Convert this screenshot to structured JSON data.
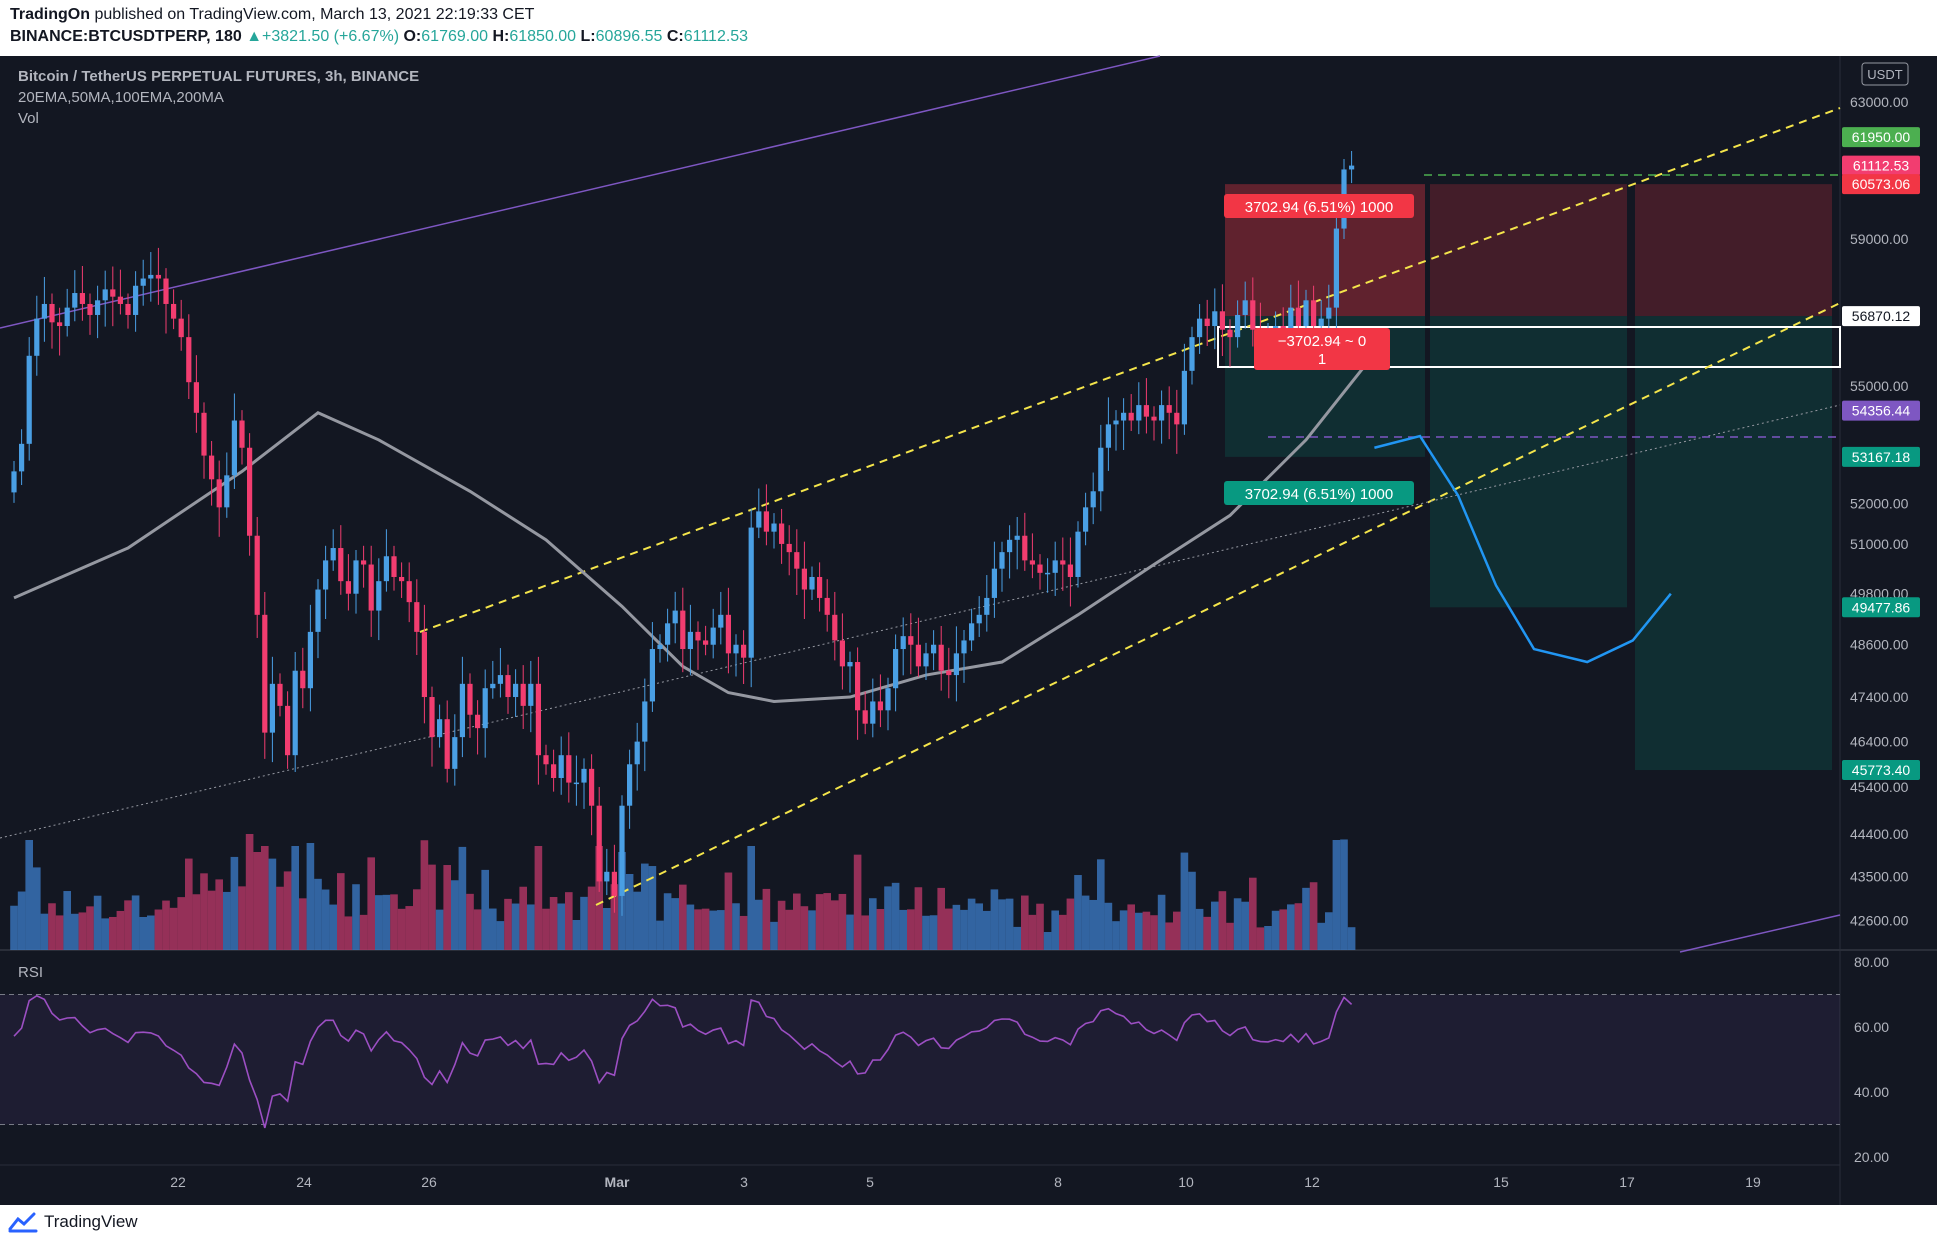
{
  "header": {
    "publisher": "TradingOn",
    "published_text": "published on TradingView.com, March 13, 2021 22:19:33 CET",
    "symbol": "BINANCE:BTCUSDTPERP, 180",
    "change": "▲+3821.50 (+6.67%)",
    "o_label": "O:",
    "o_value": "61769.00",
    "h_label": "H:",
    "h_value": "61850.00",
    "l_label": "L:",
    "l_value": "60896.55",
    "c_label": "C:",
    "c_value": "61112.53"
  },
  "legend": {
    "title": "Bitcoin / TetherUS PERPETUAL FUTURES, 3h, BINANCE",
    "indicators": "20EMA,50MA,100EMA,200MA",
    "volume": "Vol",
    "rsi": "RSI"
  },
  "footer": {
    "brand": "TradingView"
  },
  "colors": {
    "background": "#131722",
    "up": "#26a69a",
    "candle_up": "#4a9fe4",
    "candle_down": "#f23d70",
    "channel": "#f4e54b",
    "wedge": "#7e57c2",
    "ma": "#9598a1",
    "projection": "#2196f3",
    "rsi": "#9c4fc3",
    "loss": "#f23645",
    "profit": "#089981"
  },
  "chart_data": [
    {
      "type": "candlestick",
      "title": "Bitcoin / TetherUS PERPETUAL FUTURES, 3h, BINANCE",
      "currency": "USDT",
      "x_ticks": [
        "22",
        "24",
        "26",
        "Mar",
        "3",
        "5",
        "8",
        "10",
        "12",
        "15",
        "17",
        "19"
      ],
      "y_ticks": [
        "63000.00",
        "59000.00",
        "55000.00",
        "52000.00",
        "51000.00",
        "49800.00",
        "48600.00",
        "47400.00",
        "46400.00",
        "45400.00",
        "44400.00",
        "43500.00",
        "42600.00"
      ],
      "ylim": [
        42000,
        64400
      ],
      "y_scale": "log",
      "price_labels": [
        {
          "value": "61950.00",
          "color": "#4caf50"
        },
        {
          "value": "61112.53",
          "color": "#f23d70"
        },
        {
          "value": "60573.06",
          "color": "#f23645"
        },
        {
          "value": "56870.12",
          "color": "#ffffff"
        },
        {
          "value": "54356.44",
          "color": "#7e57c2"
        },
        {
          "value": "53167.18",
          "color": "#089981"
        },
        {
          "value": "49477.86",
          "color": "#089981"
        },
        {
          "value": "45773.40",
          "color": "#089981"
        }
      ],
      "annotations": {
        "loss_label": "3702.94 (6.51%) 1000",
        "profit_label": "3702.94 (6.51%) 1000",
        "center_line1": "−3702.94 ~ 0",
        "center_line2": "1"
      },
      "closes": [
        52800,
        53500,
        55800,
        56800,
        57200,
        56700,
        56600,
        57100,
        57500,
        57200,
        56900,
        57300,
        57600,
        57400,
        57200,
        56900,
        57700,
        57900,
        58000,
        57900,
        57200,
        56800,
        56300,
        55100,
        54300,
        53200,
        52600,
        51900,
        52700,
        54100,
        53400,
        51200,
        49300,
        46600,
        47700,
        47200,
        46100,
        48000,
        47600,
        48900,
        49900,
        50600,
        50900,
        50100,
        49800,
        50600,
        50500,
        49400,
        50100,
        50700,
        50200,
        50100,
        49600,
        48900,
        47400,
        46500,
        46900,
        45800,
        46500,
        47700,
        47000,
        46700,
        47600,
        47700,
        47900,
        47400,
        47700,
        47200,
        47700,
        46100,
        45900,
        45600,
        46100,
        45500,
        45500,
        45800,
        45000,
        43400,
        43600,
        43100,
        45000,
        45900,
        46400,
        47300,
        48500,
        48600,
        49100,
        49400,
        48500,
        48900,
        48700,
        48600,
        49000,
        49300,
        48400,
        48600,
        48300,
        51400,
        51800,
        51300,
        51500,
        51000,
        50800,
        50400,
        49900,
        50200,
        49700,
        49300,
        48700,
        48100,
        48200,
        47100,
        46800,
        47300,
        47100,
        47600,
        48500,
        48800,
        48600,
        48100,
        48400,
        48600,
        48000,
        47900,
        48400,
        48700,
        49100,
        49300,
        49700,
        50400,
        50800,
        51100,
        51200,
        50600,
        50500,
        50300,
        50300,
        50600,
        50500,
        50200,
        51300,
        51900,
        52300,
        53400,
        54000,
        54100,
        54300,
        54100,
        54500,
        54200,
        54100,
        54500,
        54300,
        54000,
        55400,
        56300,
        56800,
        56600,
        57000,
        56500,
        56300,
        56900,
        57300,
        56500,
        56400,
        56400,
        56600,
        56500,
        57100,
        56600,
        57300,
        56600,
        56800,
        57100,
        59300,
        61000,
        61112.53
      ],
      "ma_curve": [
        [
          0,
          49700
        ],
        [
          15,
          50900
        ],
        [
          30,
          52800
        ],
        [
          40,
          54300
        ],
        [
          48,
          53600
        ],
        [
          60,
          52300
        ],
        [
          70,
          51100
        ],
        [
          80,
          49500
        ],
        [
          88,
          48100
        ],
        [
          94,
          47500
        ],
        [
          100,
          47300
        ],
        [
          110,
          47400
        ],
        [
          120,
          47900
        ],
        [
          130,
          48200
        ],
        [
          140,
          49300
        ],
        [
          150,
          50500
        ],
        [
          160,
          51700
        ],
        [
          170,
          53600
        ],
        [
          178,
          55600
        ]
      ],
      "projection_curve": [
        [
          179,
          53400
        ],
        [
          185,
          53700
        ],
        [
          190,
          52200
        ],
        [
          195,
          50000
        ],
        [
          200,
          48500
        ],
        [
          207,
          48200
        ],
        [
          213,
          48700
        ],
        [
          218,
          49800
        ]
      ],
      "volume_colors_up_down": [
        "#3d7fcc",
        "#c2396b"
      ],
      "rsi": {
        "ylim": [
          20,
          80
        ],
        "ticks": [
          "80.00",
          "60.00",
          "40.00",
          "20.00"
        ],
        "bands": [
          70,
          30
        ]
      }
    }
  ]
}
